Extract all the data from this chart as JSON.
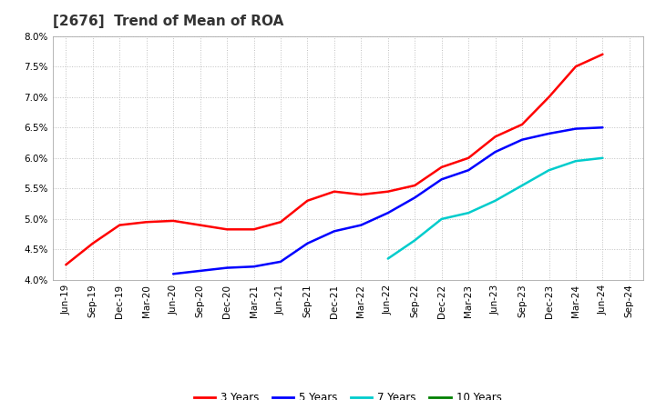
{
  "title": "[2676]  Trend of Mean of ROA",
  "ylim": [
    0.04,
    0.08
  ],
  "yticks": [
    0.04,
    0.045,
    0.05,
    0.055,
    0.06,
    0.065,
    0.07,
    0.075,
    0.08
  ],
  "x_labels": [
    "Jun-19",
    "Sep-19",
    "Dec-19",
    "Mar-20",
    "Jun-20",
    "Sep-20",
    "Dec-20",
    "Mar-21",
    "Jun-21",
    "Sep-21",
    "Dec-21",
    "Mar-22",
    "Jun-22",
    "Sep-22",
    "Dec-22",
    "Mar-23",
    "Jun-23",
    "Sep-23",
    "Dec-23",
    "Mar-24",
    "Jun-24",
    "Sep-24"
  ],
  "series_3y": [
    0.0425,
    0.046,
    0.049,
    0.0495,
    0.0497,
    0.049,
    0.0483,
    0.0483,
    0.0495,
    0.053,
    0.0545,
    0.054,
    0.0545,
    0.0555,
    0.0585,
    0.06,
    0.0635,
    0.0655,
    0.07,
    0.075,
    0.077,
    null
  ],
  "series_5y": [
    null,
    null,
    null,
    null,
    0.041,
    0.0415,
    0.042,
    0.0422,
    0.043,
    0.046,
    0.048,
    0.049,
    0.051,
    0.0535,
    0.0565,
    0.058,
    0.061,
    0.063,
    0.064,
    0.0648,
    0.065,
    null
  ],
  "series_7y": [
    null,
    null,
    null,
    null,
    null,
    null,
    null,
    null,
    null,
    null,
    null,
    null,
    0.0435,
    0.0465,
    0.05,
    0.051,
    0.053,
    0.0555,
    0.058,
    0.0595,
    0.06,
    null
  ],
  "series_10y": [
    null,
    null,
    null,
    null,
    null,
    null,
    null,
    null,
    null,
    null,
    null,
    null,
    null,
    null,
    null,
    null,
    null,
    null,
    null,
    null,
    null,
    null
  ],
  "color_3y": "#FF0000",
  "color_5y": "#0000FF",
  "color_7y": "#00CCCC",
  "color_10y": "#008000",
  "background_color": "#FFFFFF",
  "grid_color": "#C0C0C0",
  "title_fontsize": 11,
  "tick_fontsize": 7.5,
  "legend_fontsize": 8.5,
  "linewidth": 1.8
}
